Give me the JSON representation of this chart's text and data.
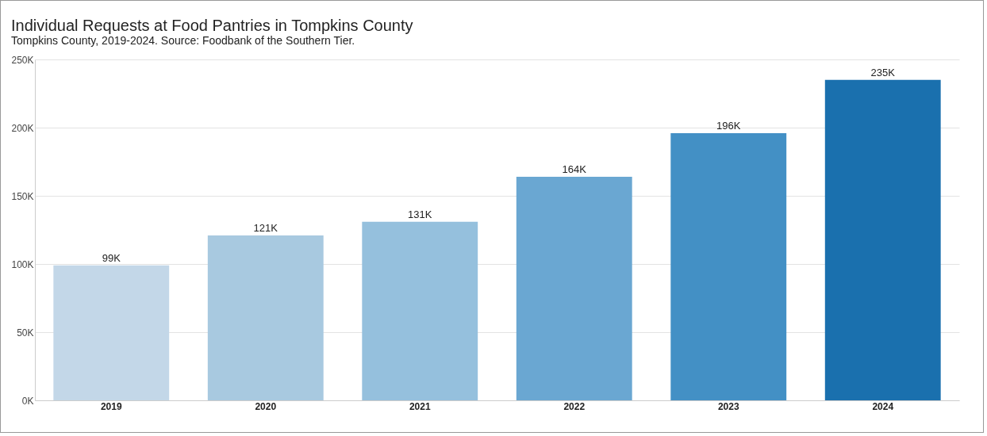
{
  "chart_data": {
    "type": "bar",
    "title": "Individual Requests at Food Pantries in Tompkins County",
    "subtitle": "Tompkins County, 2019-2024. Source: Foodbank of the Southern Tier.",
    "categories": [
      "2019",
      "2020",
      "2021",
      "2022",
      "2023",
      "2024"
    ],
    "values": [
      99000,
      121000,
      131000,
      164000,
      196000,
      235000
    ],
    "value_labels": [
      "99K",
      "121K",
      "131K",
      "164K",
      "196K",
      "235K"
    ],
    "colors": [
      "#c3d7e8",
      "#a8c9e0",
      "#95c0dd",
      "#6aa7d2",
      "#4390c5",
      "#1a70ae"
    ],
    "ylim": [
      0,
      250000
    ],
    "yticks": [
      {
        "value": 0,
        "label": "0K"
      },
      {
        "value": 50000,
        "label": "50K"
      },
      {
        "value": 100000,
        "label": "100K"
      },
      {
        "value": 150000,
        "label": "150K"
      },
      {
        "value": 200000,
        "label": "200K"
      },
      {
        "value": 250000,
        "label": "250K"
      }
    ],
    "grid": "y",
    "legend": false
  }
}
